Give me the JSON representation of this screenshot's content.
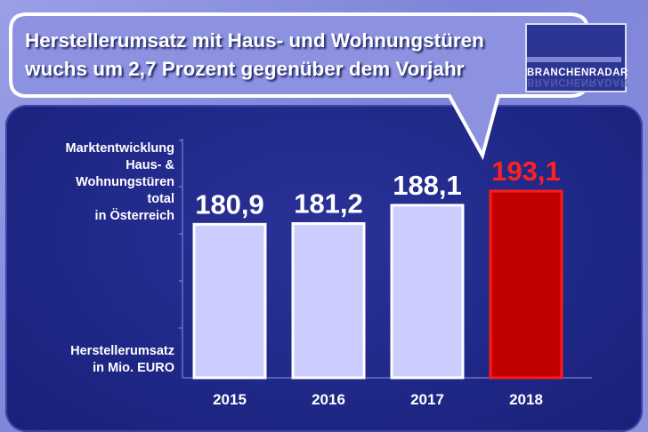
{
  "header": {
    "headline_line1": "Herstellerumsatz mit Haus- und Wohnungstüren",
    "headline_line2": "wuchs um 2,7 Prozent gegenüber dem Vorjahr",
    "logo_text": "BRANCHENRADAR"
  },
  "labels": {
    "market_lines": [
      "Marktentwicklung",
      "Haus- &",
      "Wohnungstüren",
      "total",
      "in Österreich"
    ],
    "unit_lines": [
      "Herstellerumsatz",
      "in Mio. EURO"
    ]
  },
  "colors": {
    "bar_fill": "#cccdff",
    "highlight_fill": "#c00000",
    "highlight_text": "#ff2020",
    "panel": "#1f2786",
    "bubble": "#8c92e0"
  },
  "chart_data": {
    "type": "bar",
    "categories": [
      "2015",
      "2016",
      "2017",
      "2018"
    ],
    "values": [
      180.9,
      181.2,
      188.1,
      193.1
    ],
    "value_labels": [
      "180,9",
      "181,2",
      "188,1",
      "193,1"
    ],
    "highlight_index": 3,
    "title": "",
    "xlabel": "",
    "ylabel": "Herstellerumsatz in Mio. EURO",
    "ylim": [
      0,
      193.1
    ],
    "grid": false,
    "legend": "none"
  }
}
